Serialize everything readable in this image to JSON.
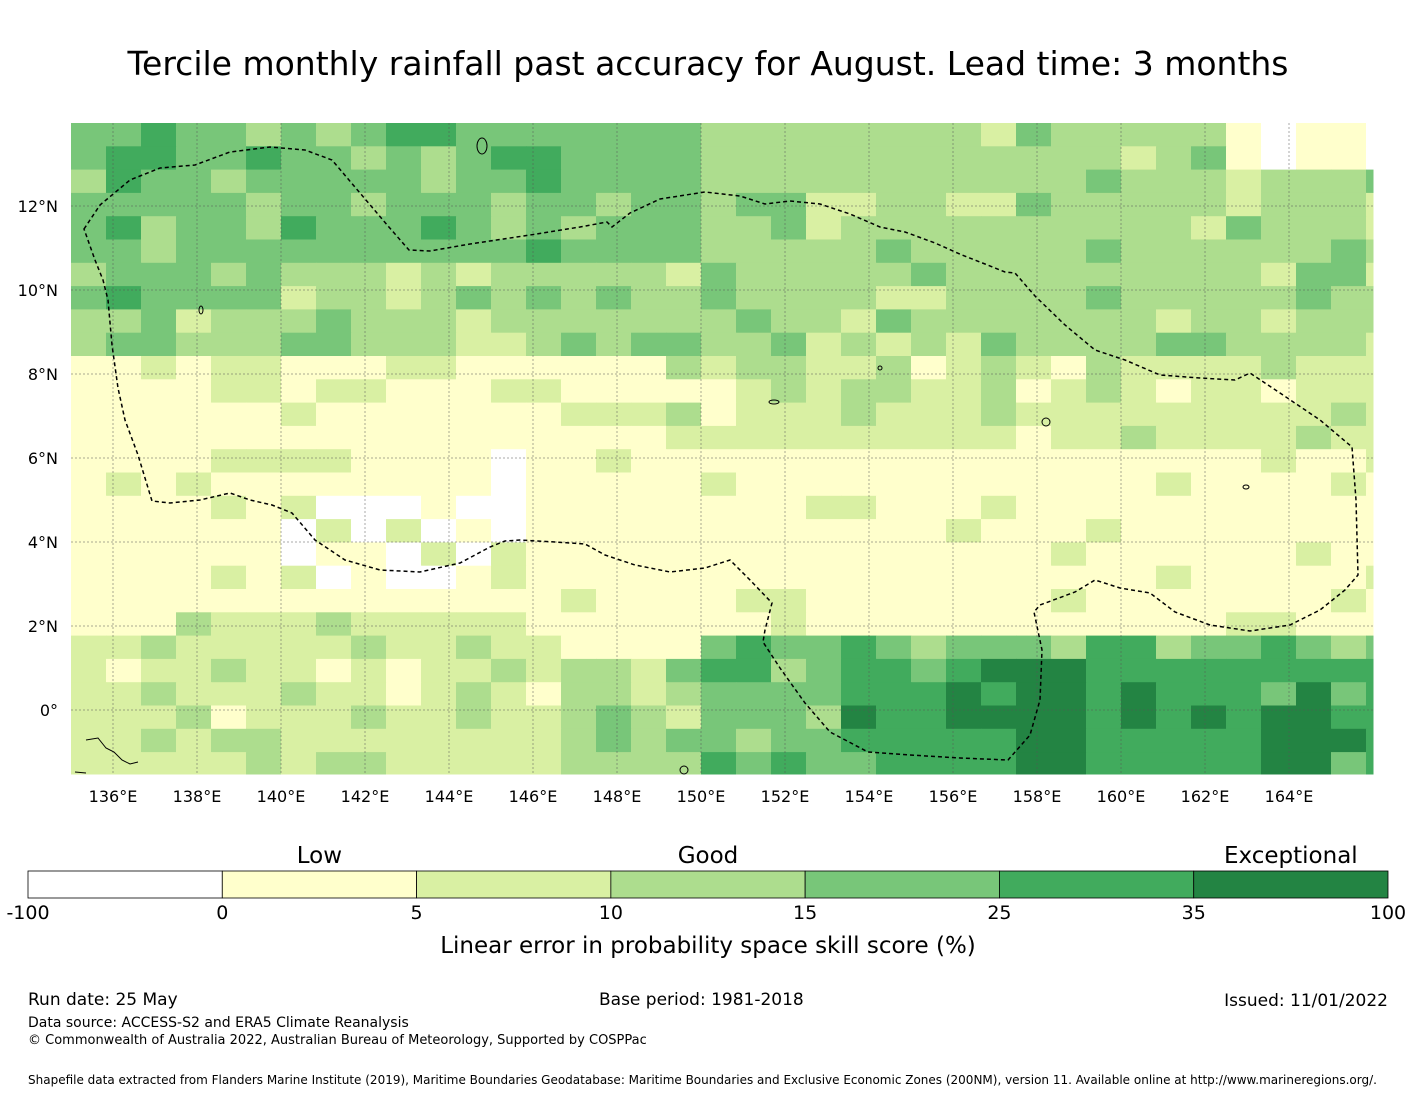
{
  "title": "Tercile monthly rainfall past accuracy for August. Lead time: 3 months",
  "map": {
    "lon_range": [
      135,
      166
    ],
    "lat_range": [
      -1.5,
      14
    ],
    "lon_ticks": [
      "136°E",
      "138°E",
      "140°E",
      "142°E",
      "144°E",
      "146°E",
      "148°E",
      "150°E",
      "152°E",
      "154°E",
      "156°E",
      "158°E",
      "160°E",
      "162°E",
      "164°E"
    ],
    "lat_ticks": [
      "12°N",
      "10°N",
      "8°N",
      "6°N",
      "4°N",
      "2°N",
      "0°"
    ],
    "cell_size_deg": 0.83
  },
  "colorbar": {
    "categories": [
      {
        "label": "Low",
        "index": 1
      },
      {
        "label": "Good",
        "index": 3
      },
      {
        "label": "Exceptional",
        "index": 6
      }
    ],
    "bins": [
      {
        "from": -100,
        "to": 0,
        "color": "#ffffff"
      },
      {
        "from": 0,
        "to": 5,
        "color": "#ffffcc"
      },
      {
        "from": 5,
        "to": 10,
        "color": "#d9f0a3"
      },
      {
        "from": 10,
        "to": 15,
        "color": "#addd8e"
      },
      {
        "from": 15,
        "to": 25,
        "color": "#78c679"
      },
      {
        "from": 25,
        "to": 35,
        "color": "#41ab5d"
      },
      {
        "from": 35,
        "to": 100,
        "color": "#238443"
      }
    ],
    "tick_labels": [
      "-100",
      "0",
      "5",
      "10",
      "15",
      "25",
      "35",
      "100"
    ],
    "title": "Linear error in probability space skill score (%)"
  },
  "footer": {
    "run_date": "Run date: 25 May",
    "base_period": "Base period: 1981-2018",
    "issued": "Issued: 11/01/2022",
    "data_source": "Data source: ACCESS-S2 and ERA5 Climate Reanalysis",
    "copyright": "© Commonwealth of Australia 2022, Australian Bureau of Meteorology, Supported by COSPPac",
    "shapefile": "Shapefile data extracted from Flanders Marine Institute (2019), Maritime Boundaries Geodatabase: Maritime Boundaries and Exclusive Economic Zones (200NM), version 11. Available online at http://www.marineregions.org/."
  }
}
